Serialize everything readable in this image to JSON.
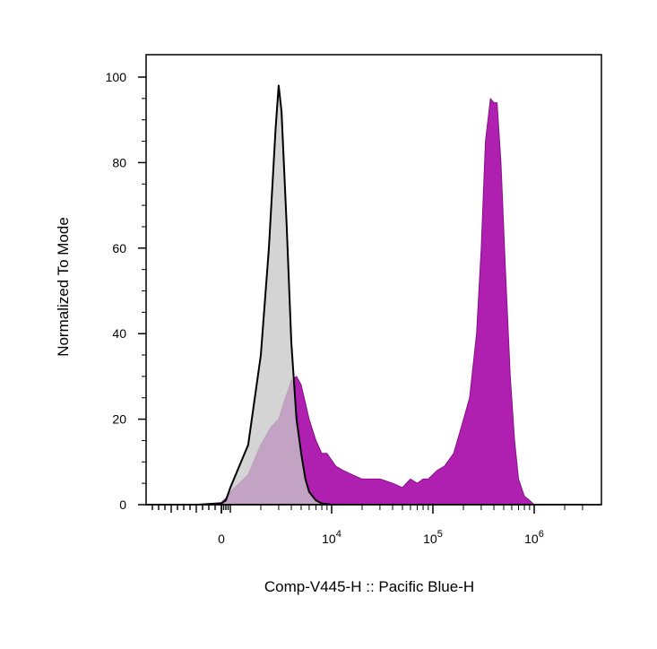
{
  "chart_data": {
    "type": "area",
    "title": "",
    "xlabel": "Comp-V445-H :: Pacific Blue-H",
    "ylabel": "Normalized To Mode",
    "x_scale": "biexponential",
    "xlim": [
      -3000,
      3000000
    ],
    "ylim": [
      0,
      103
    ],
    "yticks": [
      0,
      20,
      40,
      60,
      80,
      100
    ],
    "xticks": [
      {
        "value": 0,
        "base": "0",
        "exp": ""
      },
      {
        "value": 10000,
        "base": "10",
        "exp": "4"
      },
      {
        "value": 100000,
        "base": "10",
        "exp": "5"
      },
      {
        "value": 1000000,
        "base": "10",
        "exp": "6"
      }
    ],
    "grid": false,
    "legend": "none",
    "series": [
      {
        "fill": "#b020b0",
        "stroke": "#8a0f8a",
        "x": [
          -3000,
          -1000,
          0,
          500,
          1000,
          1500,
          2000,
          2500,
          3000,
          3500,
          4000,
          4500,
          5000,
          6000,
          7000,
          8000,
          9000,
          11000,
          13000,
          16000,
          20000,
          25000,
          30000,
          40000,
          50000,
          60000,
          70000,
          80000,
          90000,
          110000,
          130000,
          160000,
          190000,
          230000,
          270000,
          300000,
          330000,
          370000,
          400000,
          430000,
          470000,
          520000,
          580000,
          640000,
          700000,
          800000,
          900000,
          1000000,
          3000000
        ],
        "y": [
          0,
          0,
          0.5,
          1.5,
          3,
          7,
          14,
          18,
          20,
          25,
          29,
          30,
          28,
          20,
          15,
          12,
          12,
          9,
          8,
          7,
          6,
          6,
          6,
          5,
          4,
          6,
          5,
          6,
          6,
          8,
          9,
          12,
          18,
          25,
          40,
          60,
          85,
          95,
          94,
          94,
          80,
          55,
          30,
          15,
          6,
          2,
          1,
          0,
          0
        ]
      },
      {
        "fill": "#c8c8c8",
        "stroke": "#000000",
        "x": [
          -3000,
          -1000,
          0,
          500,
          1000,
          1500,
          2000,
          2400,
          2800,
          3000,
          3200,
          3600,
          4000,
          4500,
          5000,
          5500,
          6000,
          7000,
          8000,
          10000,
          3000000
        ],
        "y": [
          0,
          0,
          0.3,
          1,
          4,
          14,
          35,
          60,
          88,
          98,
          92,
          65,
          38,
          20,
          12,
          6,
          3,
          1,
          0.3,
          0,
          0
        ]
      }
    ]
  }
}
